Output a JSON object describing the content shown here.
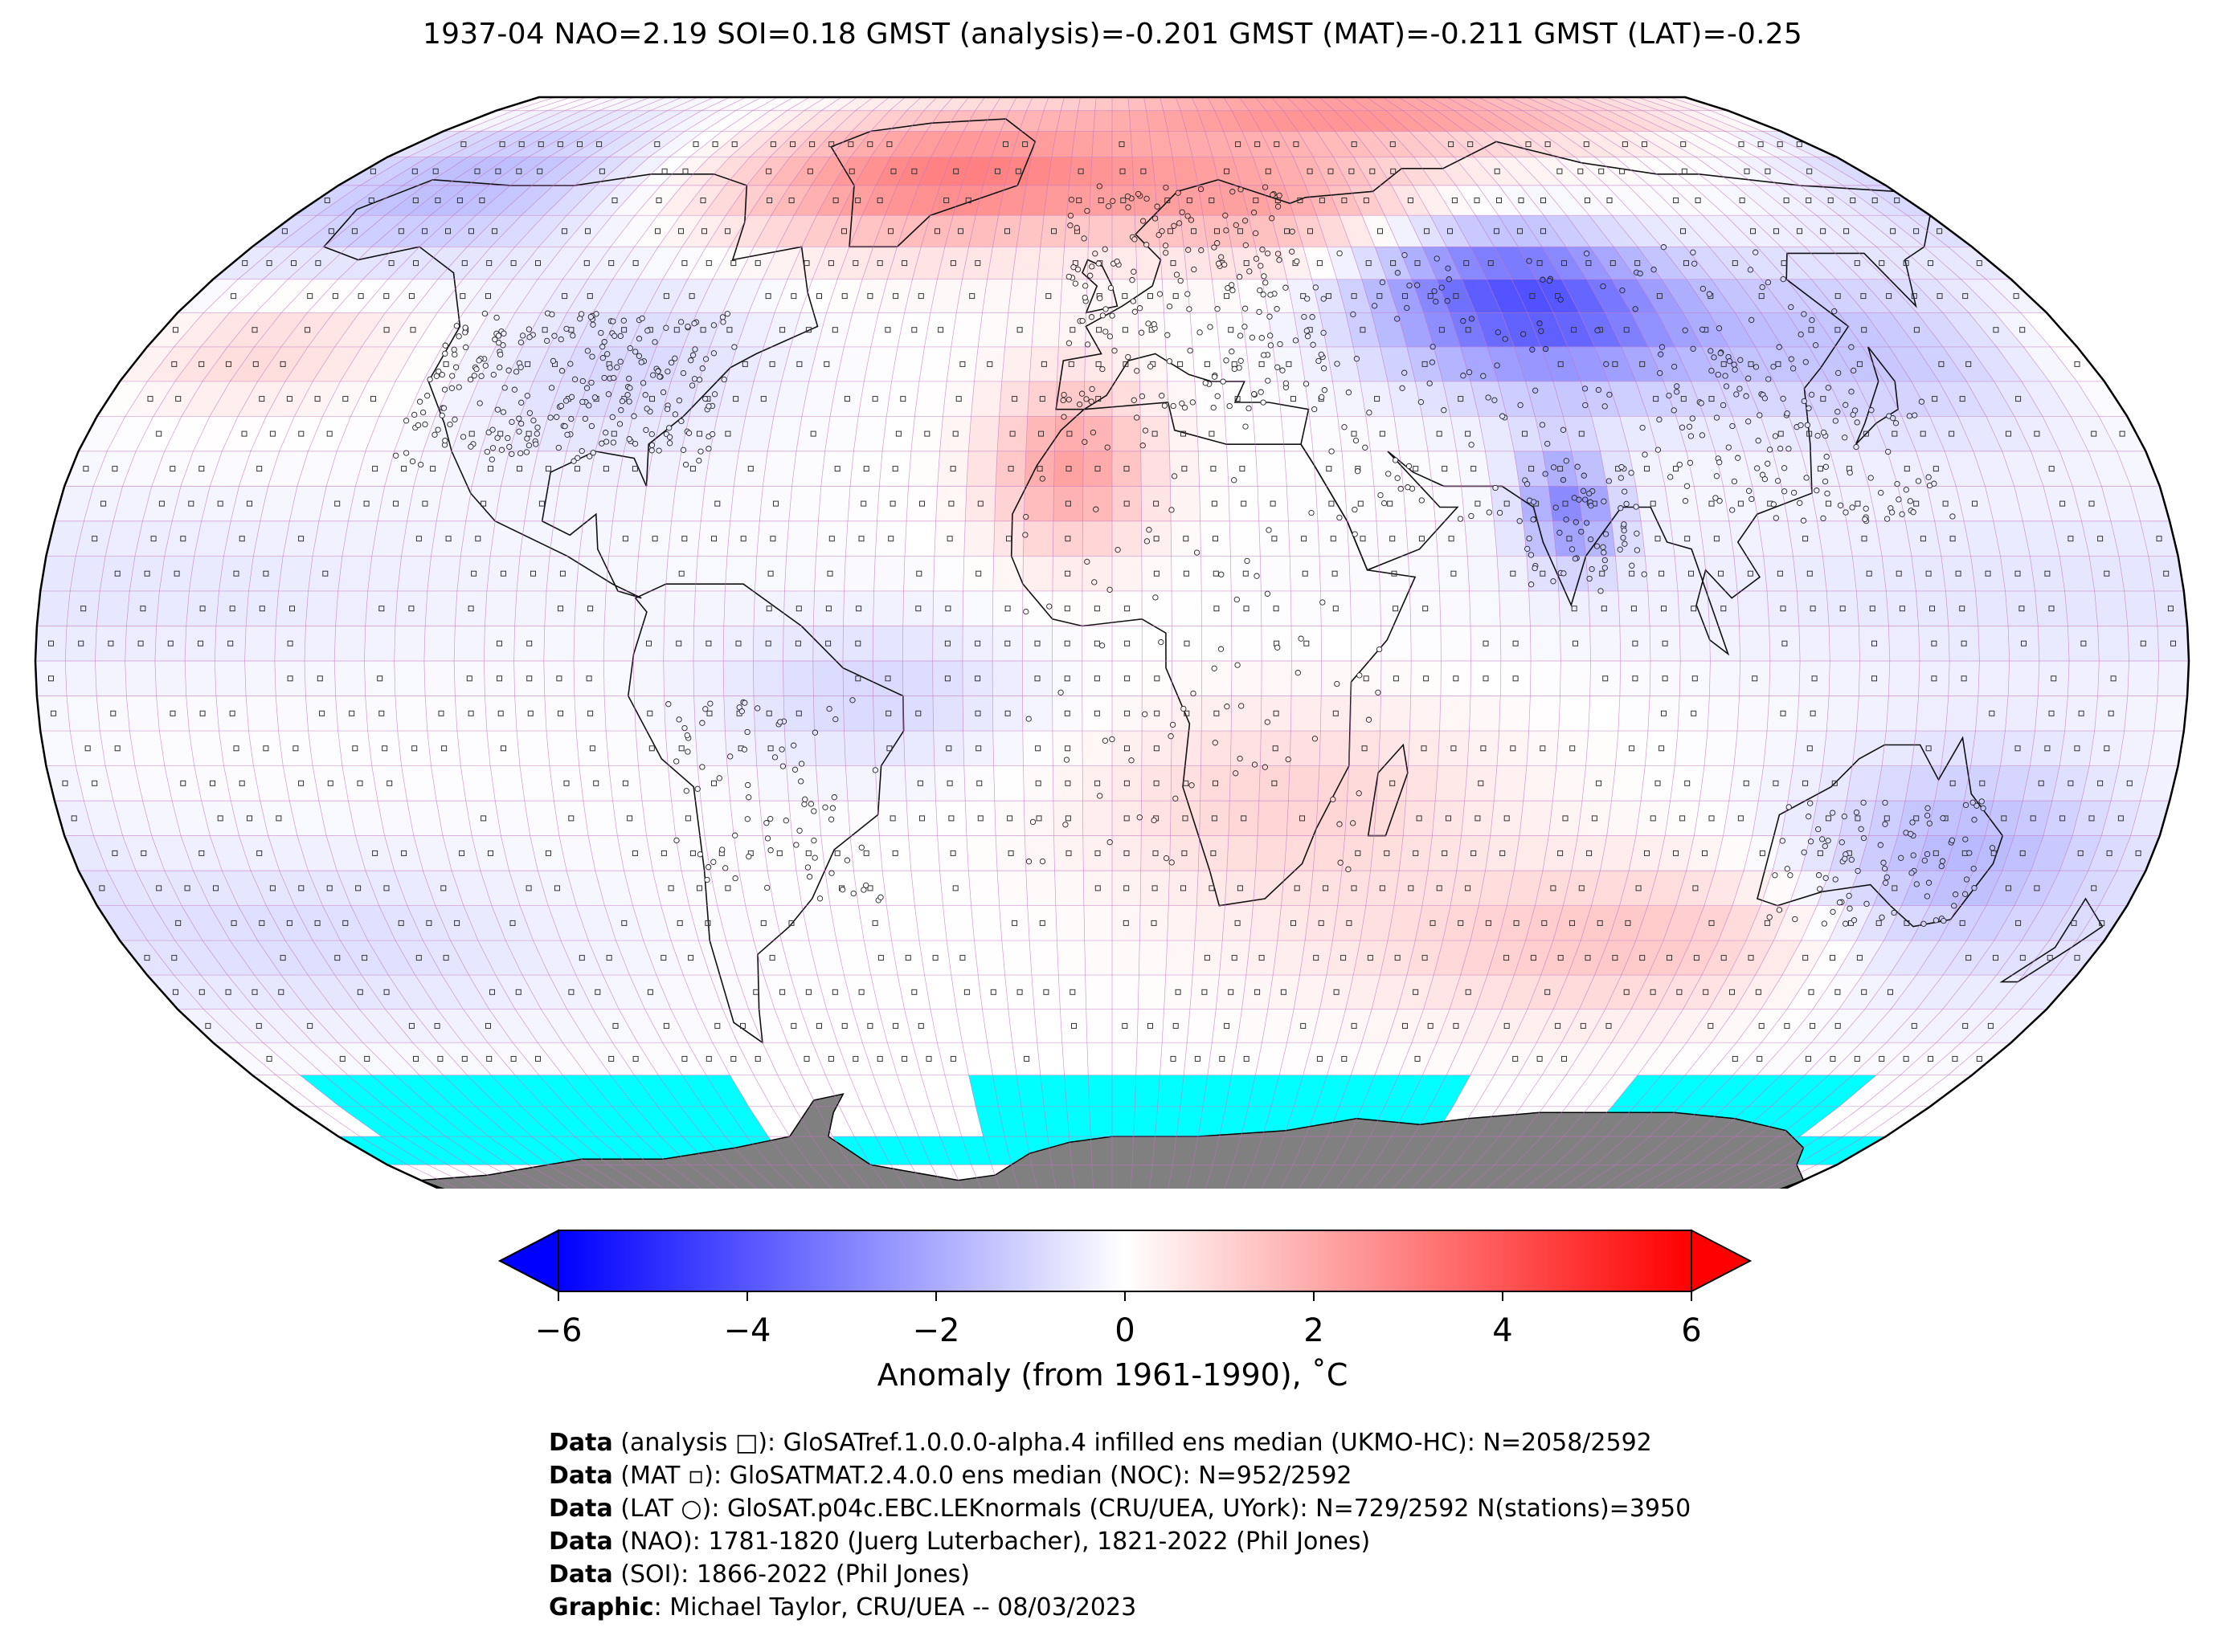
{
  "title": "1937-04 NAO=2.19 SOI=0.18 GMST (analysis)=-0.201 GMST (MAT)=-0.211 GMST (LAT)=-0.25",
  "colors": {
    "ocean_neutral": "#f8f8ff",
    "missing_ice": "#00ffff",
    "antarctica": "#808080",
    "grid_lines": "#c070c0",
    "cold_extreme": "#0000ff",
    "warm_extreme": "#ff0000"
  },
  "colorbar": {
    "ticks": [
      -6,
      -4,
      -2,
      0,
      2,
      4,
      6
    ],
    "tick_labels": [
      "−6",
      "−4",
      "−2",
      "0",
      "2",
      "4",
      "6"
    ],
    "label": "Anomaly (from 1961-1990), ˚C",
    "extend": "both",
    "cmap": "bwr"
  },
  "map": {
    "projection": "Robinson",
    "grid_resolution_deg": 5,
    "features": [
      "coastlines",
      "country-borders",
      "station-markers"
    ],
    "markers": [
      "analysis (square)",
      "MAT (small square)",
      "LAT (circle)"
    ]
  },
  "credits": [
    {
      "label": "Data",
      "text": " (analysis □): GloSATref.1.0.0.0-alpha.4 infilled ens median (UKMO-HC): N=2058/2592"
    },
    {
      "label": "Data",
      "text": " (MAT ▫): GloSATMAT.2.4.0.0 ens median (NOC): N=952/2592"
    },
    {
      "label": "Data",
      "text": " (LAT ○): GloSAT.p04c.EBC.LEKnormals (CRU/UEA, UYork): N=729/2592 N(stations)=3950"
    },
    {
      "label": "Data",
      "text": " (NAO): 1781-1820 (Juerg Luterbacher), 1821-2022 (Phil Jones)"
    },
    {
      "label": "Data",
      "text": " (SOI): 1866-2022 (Phil Jones)"
    },
    {
      "label": "Graphic",
      "text": ": Michael Taylor, CRU/UEA -- 08/03/2023"
    }
  ]
}
